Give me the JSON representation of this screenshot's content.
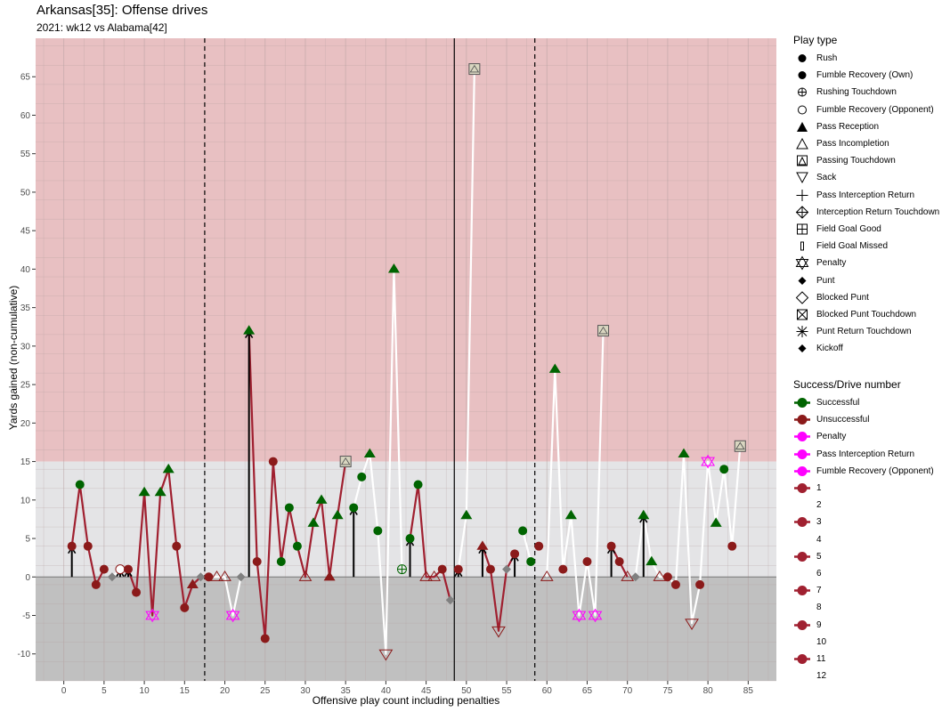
{
  "title": "Arkansas[35]: Offense drives",
  "subtitle": "2021: wk12 vs Alabama[42]",
  "chart_data": {
    "type": "scatter",
    "title": "Arkansas[35]: Offense drives",
    "subtitle": "2021: wk12 vs Alabama[42]",
    "xlabel": "Offensive play count including penalties",
    "ylabel": "Yards gained (non-cumulative)",
    "xlim": [
      -3.5,
      88.5
    ],
    "ylim": [
      -13.5,
      70
    ],
    "x_ticks": [
      0,
      5,
      10,
      15,
      20,
      25,
      30,
      35,
      40,
      45,
      50,
      55,
      60,
      65,
      70,
      75,
      80,
      85
    ],
    "y_ticks": [
      -10,
      -5,
      0,
      5,
      10,
      15,
      20,
      25,
      30,
      35,
      40,
      45,
      50,
      55,
      60,
      65
    ],
    "bands": [
      {
        "from": 15,
        "to": 70,
        "color": "#e8c0c2"
      },
      {
        "from": 0,
        "to": 15,
        "color": "#e4e4e6"
      },
      {
        "from": -13.5,
        "to": 0,
        "color": "#c0c0c0"
      }
    ],
    "vlines": [
      {
        "x": 17.5,
        "style": "dashed"
      },
      {
        "x": 48.5,
        "style": "solid"
      },
      {
        "x": 58.5,
        "style": "dashed"
      }
    ],
    "drives": [
      {
        "name": "1",
        "color": "#a02030",
        "x": [
          1,
          2,
          3,
          4,
          5
        ],
        "y": [
          4,
          12,
          4,
          -1,
          1
        ]
      },
      {
        "name": "2",
        "color": "#ffffff",
        "x": [
          6,
          7
        ],
        "y": [
          0,
          1
        ]
      },
      {
        "name": "3",
        "color": "#a02030",
        "x": [
          8,
          9,
          10,
          11,
          12,
          13,
          14,
          15,
          16,
          17
        ],
        "y": [
          1,
          -2,
          11,
          -5,
          11,
          14,
          4,
          -4,
          -1,
          0
        ]
      },
      {
        "name": "4",
        "color": "#ffffff",
        "x": [
          18,
          19,
          20,
          21,
          22
        ],
        "y": [
          0,
          0,
          0,
          -5,
          0
        ]
      },
      {
        "name": "5",
        "color": "#a02030",
        "x": [
          23,
          24,
          25,
          26,
          27,
          28,
          29,
          30,
          31,
          32,
          33,
          34,
          35
        ],
        "y": [
          32,
          2,
          -8,
          15,
          2,
          9,
          4,
          0,
          7,
          10,
          0,
          8,
          15
        ]
      },
      {
        "name": "6",
        "color": "#ffffff",
        "x": [
          36,
          37,
          38,
          39,
          40,
          41,
          42
        ],
        "y": [
          9,
          13,
          16,
          6,
          -10,
          40,
          1
        ]
      },
      {
        "name": "7",
        "color": "#a02030",
        "x": [
          43,
          44,
          45,
          46,
          47,
          48
        ],
        "y": [
          5,
          12,
          0,
          0,
          1,
          -3
        ]
      },
      {
        "name": "8",
        "color": "#ffffff",
        "x": [
          49,
          50,
          51
        ],
        "y": [
          1,
          8,
          66
        ]
      },
      {
        "name": "9",
        "color": "#a02030",
        "x": [
          52,
          53,
          54,
          55,
          56
        ],
        "y": [
          4,
          1,
          -7,
          1,
          3
        ]
      },
      {
        "name": "10",
        "color": "#ffffff",
        "x": [
          57,
          58
        ],
        "y": [
          6,
          2
        ]
      },
      {
        "name": "11",
        "color": "#a02030",
        "x": [
          59
        ],
        "y": [
          4
        ]
      },
      {
        "name": "10b",
        "color": "#ffffff",
        "x": [
          60,
          61,
          62,
          63,
          64,
          65,
          66,
          67
        ],
        "y": [
          0,
          27,
          1,
          8,
          -5,
          2,
          -5,
          32
        ]
      },
      {
        "name": "11b",
        "color": "#a02030",
        "x": [
          68,
          69,
          70
        ],
        "y": [
          4,
          2,
          0
        ]
      },
      {
        "name": "12",
        "color": "#ffffff",
        "x": [
          71,
          72,
          73,
          74,
          75,
          76,
          77,
          78,
          79,
          80,
          81,
          82,
          83,
          84
        ],
        "y": [
          0,
          8,
          2,
          0,
          0,
          -1,
          16,
          -6,
          -1,
          15,
          7,
          14,
          4,
          17
        ]
      }
    ],
    "points": [
      {
        "x": 1,
        "y": 4,
        "shape": "circle",
        "outcome": "unsuccessful"
      },
      {
        "x": 2,
        "y": 12,
        "shape": "circle",
        "outcome": "successful"
      },
      {
        "x": 3,
        "y": 4,
        "shape": "circle",
        "outcome": "unsuccessful"
      },
      {
        "x": 4,
        "y": -1,
        "shape": "circle",
        "outcome": "unsuccessful"
      },
      {
        "x": 5,
        "y": 1,
        "shape": "circle",
        "outcome": "unsuccessful"
      },
      {
        "x": 6,
        "y": 0,
        "shape": "punt"
      },
      {
        "x": 7,
        "y": 1,
        "shape": "open-circle"
      },
      {
        "x": 8,
        "y": 1,
        "shape": "circle",
        "outcome": "unsuccessful"
      },
      {
        "x": 9,
        "y": -2,
        "shape": "circle",
        "outcome": "unsuccessful"
      },
      {
        "x": 10,
        "y": 11,
        "shape": "triangle",
        "outcome": "successful"
      },
      {
        "x": 11,
        "y": -5,
        "shape": "penalty"
      },
      {
        "x": 12,
        "y": 11,
        "shape": "triangle",
        "outcome": "successful"
      },
      {
        "x": 13,
        "y": 14,
        "shape": "triangle",
        "outcome": "successful"
      },
      {
        "x": 14,
        "y": 4,
        "shape": "circle",
        "outcome": "unsuccessful"
      },
      {
        "x": 15,
        "y": -4,
        "shape": "circle",
        "outcome": "unsuccessful"
      },
      {
        "x": 16,
        "y": -1,
        "shape": "triangle",
        "outcome": "unsuccessful"
      },
      {
        "x": 17,
        "y": 0,
        "shape": "punt"
      },
      {
        "x": 18,
        "y": 0,
        "shape": "circle",
        "outcome": "unsuccessful"
      },
      {
        "x": 19,
        "y": 0,
        "shape": "open-triangle"
      },
      {
        "x": 20,
        "y": 0,
        "shape": "open-triangle"
      },
      {
        "x": 21,
        "y": -5,
        "shape": "penalty"
      },
      {
        "x": 22,
        "y": 0,
        "shape": "punt"
      },
      {
        "x": 23,
        "y": 32,
        "shape": "triangle",
        "outcome": "successful"
      },
      {
        "x": 24,
        "y": 2,
        "shape": "circle",
        "outcome": "unsuccessful"
      },
      {
        "x": 25,
        "y": -8,
        "shape": "circle",
        "outcome": "unsuccessful"
      },
      {
        "x": 26,
        "y": 15,
        "shape": "circle",
        "outcome": "unsuccessful"
      },
      {
        "x": 27,
        "y": 2,
        "shape": "circle",
        "outcome": "successful"
      },
      {
        "x": 28,
        "y": 9,
        "shape": "circle",
        "outcome": "successful"
      },
      {
        "x": 29,
        "y": 4,
        "shape": "circle",
        "outcome": "successful"
      },
      {
        "x": 30,
        "y": 0,
        "shape": "open-triangle"
      },
      {
        "x": 31,
        "y": 7,
        "shape": "triangle",
        "outcome": "successful"
      },
      {
        "x": 32,
        "y": 10,
        "shape": "triangle",
        "outcome": "successful"
      },
      {
        "x": 33,
        "y": 0,
        "shape": "triangle",
        "outcome": "unsuccessful"
      },
      {
        "x": 34,
        "y": 8,
        "shape": "triangle",
        "outcome": "successful"
      },
      {
        "x": 35,
        "y": 15,
        "shape": "pass-td"
      },
      {
        "x": 36,
        "y": 9,
        "shape": "circle",
        "outcome": "successful"
      },
      {
        "x": 37,
        "y": 13,
        "shape": "circle",
        "outcome": "successful"
      },
      {
        "x": 38,
        "y": 16,
        "shape": "triangle",
        "outcome": "successful"
      },
      {
        "x": 39,
        "y": 6,
        "shape": "circle",
        "outcome": "successful"
      },
      {
        "x": 40,
        "y": -10,
        "shape": "sack"
      },
      {
        "x": 41,
        "y": 40,
        "shape": "triangle",
        "outcome": "successful"
      },
      {
        "x": 42,
        "y": 1,
        "shape": "rush-td"
      },
      {
        "x": 43,
        "y": 5,
        "shape": "circle",
        "outcome": "successful"
      },
      {
        "x": 44,
        "y": 12,
        "shape": "circle",
        "outcome": "successful"
      },
      {
        "x": 45,
        "y": 0,
        "shape": "open-triangle"
      },
      {
        "x": 46,
        "y": 0,
        "shape": "open-triangle"
      },
      {
        "x": 47,
        "y": 1,
        "shape": "circle",
        "outcome": "unsuccessful"
      },
      {
        "x": 48,
        "y": -3,
        "shape": "punt"
      },
      {
        "x": 49,
        "y": 1,
        "shape": "circle",
        "outcome": "unsuccessful"
      },
      {
        "x": 50,
        "y": 8,
        "shape": "triangle",
        "outcome": "successful"
      },
      {
        "x": 51,
        "y": 66,
        "shape": "pass-td"
      },
      {
        "x": 52,
        "y": 4,
        "shape": "triangle",
        "outcome": "unsuccessful"
      },
      {
        "x": 53,
        "y": 1,
        "shape": "circle",
        "outcome": "unsuccessful"
      },
      {
        "x": 54,
        "y": -7,
        "shape": "sack"
      },
      {
        "x": 55,
        "y": 1,
        "shape": "punt"
      },
      {
        "x": 56,
        "y": 3,
        "shape": "circle",
        "outcome": "unsuccessful"
      },
      {
        "x": 57,
        "y": 6,
        "shape": "circle",
        "outcome": "successful"
      },
      {
        "x": 58,
        "y": 2,
        "shape": "circle",
        "outcome": "successful"
      },
      {
        "x": 59,
        "y": 4,
        "shape": "circle",
        "outcome": "unsuccessful"
      },
      {
        "x": 60,
        "y": 0,
        "shape": "open-triangle"
      },
      {
        "x": 61,
        "y": 27,
        "shape": "triangle",
        "outcome": "successful"
      },
      {
        "x": 62,
        "y": 1,
        "shape": "circle",
        "outcome": "unsuccessful"
      },
      {
        "x": 63,
        "y": 8,
        "shape": "triangle",
        "outcome": "successful"
      },
      {
        "x": 64,
        "y": -5,
        "shape": "penalty"
      },
      {
        "x": 65,
        "y": 2,
        "shape": "circle",
        "outcome": "unsuccessful"
      },
      {
        "x": 66,
        "y": -5,
        "shape": "penalty"
      },
      {
        "x": 67,
        "y": 32,
        "shape": "pass-td"
      },
      {
        "x": 68,
        "y": 4,
        "shape": "circle",
        "outcome": "unsuccessful"
      },
      {
        "x": 69,
        "y": 2,
        "shape": "circle",
        "outcome": "unsuccessful"
      },
      {
        "x": 70,
        "y": 0,
        "shape": "open-triangle"
      },
      {
        "x": 71,
        "y": 0,
        "shape": "punt"
      },
      {
        "x": 72,
        "y": 8,
        "shape": "triangle",
        "outcome": "successful"
      },
      {
        "x": 73,
        "y": 2,
        "shape": "triangle",
        "outcome": "successful"
      },
      {
        "x": 74,
        "y": 0,
        "shape": "open-triangle"
      },
      {
        "x": 75,
        "y": 0,
        "shape": "circle",
        "outcome": "unsuccessful"
      },
      {
        "x": 76,
        "y": -1,
        "shape": "circle",
        "outcome": "unsuccessful"
      },
      {
        "x": 77,
        "y": 16,
        "shape": "triangle",
        "outcome": "successful"
      },
      {
        "x": 78,
        "y": -6,
        "shape": "sack"
      },
      {
        "x": 79,
        "y": -1,
        "shape": "circle",
        "outcome": "unsuccessful"
      },
      {
        "x": 80,
        "y": 15,
        "shape": "penalty"
      },
      {
        "x": 81,
        "y": 7,
        "shape": "triangle",
        "outcome": "successful"
      },
      {
        "x": 82,
        "y": 14,
        "shape": "circle",
        "outcome": "successful"
      },
      {
        "x": 83,
        "y": 4,
        "shape": "circle",
        "outcome": "unsuccessful"
      },
      {
        "x": 84,
        "y": 17,
        "shape": "pass-td"
      }
    ],
    "arrows": [
      {
        "x": 1,
        "y0": 0,
        "y1": 4
      },
      {
        "x": 7,
        "y0": 0,
        "y1": 1
      },
      {
        "x": 8,
        "y0": 0,
        "y1": 1
      },
      {
        "x": 23,
        "y0": 0,
        "y1": 32
      },
      {
        "x": 36,
        "y0": 0,
        "y1": 9
      },
      {
        "x": 43,
        "y0": 0,
        "y1": 5
      },
      {
        "x": 49,
        "y0": 0,
        "y1": 1
      },
      {
        "x": 52,
        "y0": 0,
        "y1": 4
      },
      {
        "x": 56,
        "y0": 0,
        "y1": 3
      },
      {
        "x": 68,
        "y0": 0,
        "y1": 4
      },
      {
        "x": 72,
        "y0": 0,
        "y1": 8
      }
    ],
    "colors": {
      "successful": "#006400",
      "unsuccessful": "#8b1a1a",
      "penalty": "#ff00ff",
      "punt": "#808080",
      "td_fill": "#d9d6c0"
    }
  },
  "legend_play_type": {
    "title": "Play type",
    "items": [
      {
        "label": "Rush",
        "icon": "filled-circle"
      },
      {
        "label": "Fumble Recovery (Own)",
        "icon": "filled-circle"
      },
      {
        "label": "Rushing Touchdown",
        "icon": "circle-plus"
      },
      {
        "label": "Fumble Recovery (Opponent)",
        "icon": "open-circle"
      },
      {
        "label": "Pass Reception",
        "icon": "filled-triangle"
      },
      {
        "label": "Pass Incompletion",
        "icon": "open-triangle"
      },
      {
        "label": "Passing Touchdown",
        "icon": "square-triangle"
      },
      {
        "label": "Sack",
        "icon": "open-down-triangle"
      },
      {
        "label": "Pass Interception Return",
        "icon": "plus"
      },
      {
        "label": "Interception Return Touchdown",
        "icon": "diamond-plus"
      },
      {
        "label": "Field Goal Good",
        "icon": "square-plus"
      },
      {
        "label": "Field Goal Missed",
        "icon": "narrow-rect"
      },
      {
        "label": "Penalty",
        "icon": "star-of-david"
      },
      {
        "label": "Punt",
        "icon": "filled-diamond"
      },
      {
        "label": "Blocked Punt",
        "icon": "open-diamond"
      },
      {
        "label": "Blocked Punt Touchdown",
        "icon": "square-x"
      },
      {
        "label": "Punt Return Touchdown",
        "icon": "asterisk"
      },
      {
        "label": "Kickoff",
        "icon": "filled-diamond"
      }
    ]
  },
  "legend_success": {
    "title": "Success/Drive number",
    "items": [
      {
        "label": "Successful",
        "color": "#006400"
      },
      {
        "label": "Unsuccessful",
        "color": "#8b1a1a"
      },
      {
        "label": "Penalty",
        "color": "#ff00ff"
      },
      {
        "label": "Pass Interception Return",
        "color": "#ff00ff"
      },
      {
        "label": "Fumble Recovery (Opponent)",
        "color": "#ff00ff"
      },
      {
        "label": "1",
        "color": "#a02030"
      },
      {
        "label": "2",
        "color": "#ffffff"
      },
      {
        "label": "3",
        "color": "#a02030"
      },
      {
        "label": "4",
        "color": "#ffffff"
      },
      {
        "label": "5",
        "color": "#a02030"
      },
      {
        "label": "6",
        "color": "#ffffff"
      },
      {
        "label": "7",
        "color": "#a02030"
      },
      {
        "label": "8",
        "color": "#ffffff"
      },
      {
        "label": "9",
        "color": "#a02030"
      },
      {
        "label": "10",
        "color": "#ffffff"
      },
      {
        "label": "11",
        "color": "#a02030"
      },
      {
        "label": "12",
        "color": "#ffffff"
      }
    ]
  }
}
